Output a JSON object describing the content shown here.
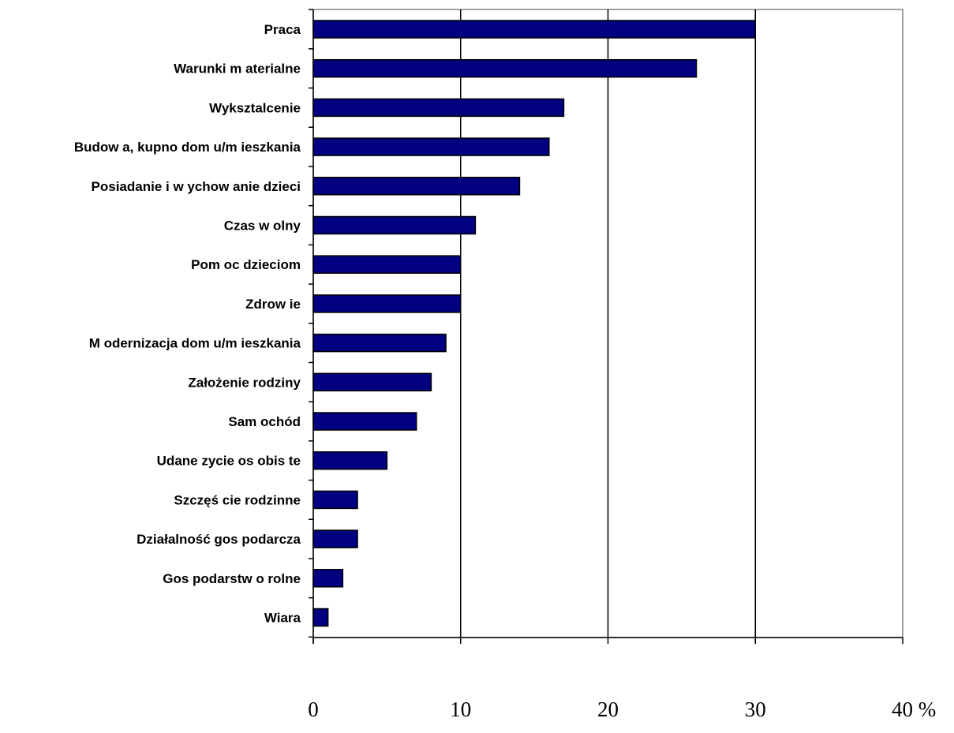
{
  "chart_data": {
    "type": "bar",
    "orientation": "horizontal",
    "categories": [
      "Praca",
      "Warunki m aterialne",
      "Wyksztalcenie",
      "Budow a, kupno dom u/m ieszkania",
      "Posiadanie i w ychow anie dzieci",
      "Czas w olny",
      "Pom oc dzieciom",
      "Zdrow ie",
      "M odernizacja dom u/m ieszkania",
      "Założenie rodziny",
      "Sam ochód",
      "Udane zycie os obis te",
      "Szczęś cie rodzinne",
      "Działalność gos podarcza",
      "Gos podarstw o rolne",
      "Wiara"
    ],
    "values": [
      30,
      26,
      17,
      16,
      14,
      11,
      10,
      10,
      9,
      8,
      7,
      5,
      3,
      3,
      2,
      1
    ],
    "xlim": [
      0,
      40
    ],
    "xticks": [
      "0",
      "10",
      "20",
      "30",
      "40 %"
    ],
    "grid": true,
    "bar_color": "#000080"
  }
}
